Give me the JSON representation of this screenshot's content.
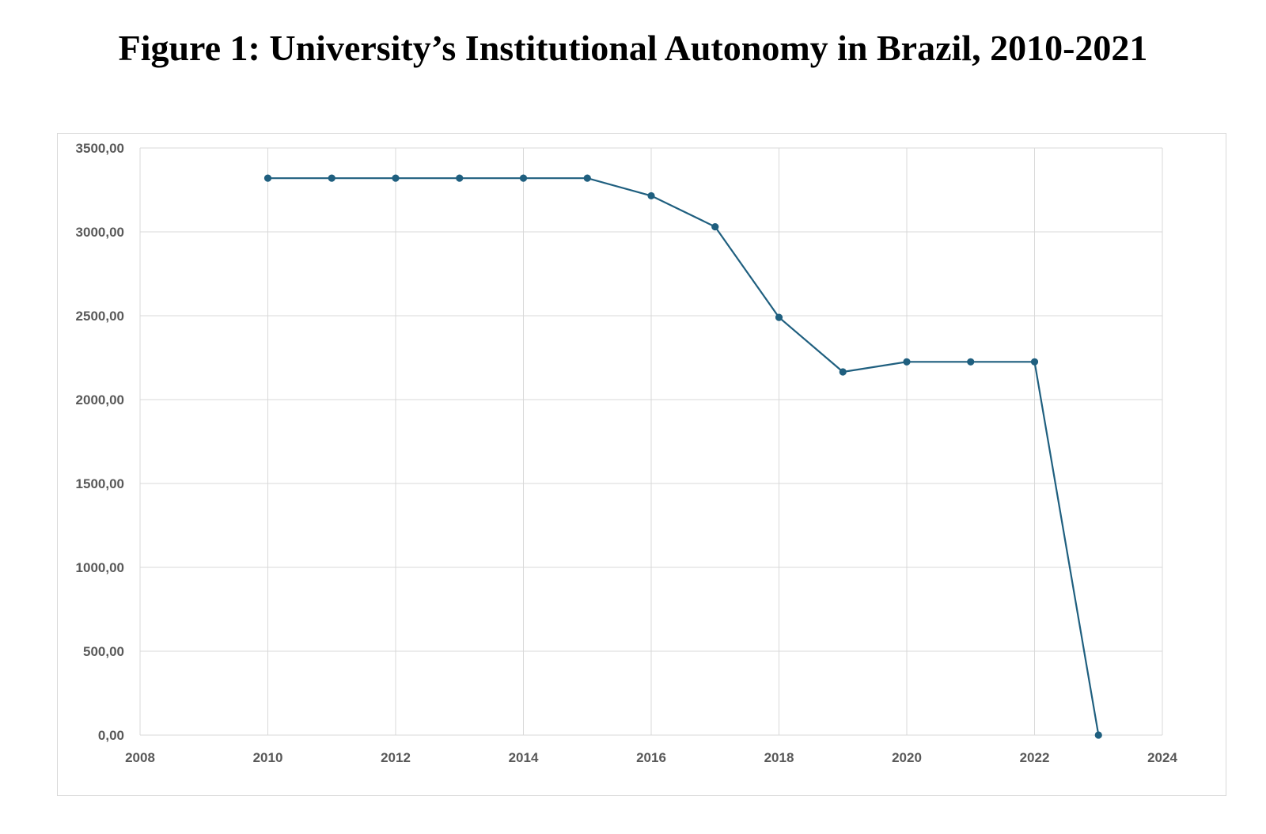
{
  "figure": {
    "title": "Figure 1: University’s Institutional Autonomy in Brazil, 2010-2021"
  },
  "colors": {
    "series_line": "#1f5f7f",
    "series_marker": "#1f5f7f",
    "grid": "#d9d9d9",
    "tick_text": "#595959"
  },
  "chart_data": {
    "type": "line",
    "title": "Figure 1: University’s Institutional Autonomy in Brazil, 2010-2021",
    "xlabel": "",
    "ylabel": "",
    "xlim": [
      2008,
      2024
    ],
    "ylim": [
      0,
      3500
    ],
    "x_ticks": [
      2008,
      2010,
      2012,
      2014,
      2016,
      2018,
      2020,
      2022,
      2024
    ],
    "x_tick_labels": [
      "2008",
      "2010",
      "2012",
      "2014",
      "2016",
      "2018",
      "2020",
      "2022",
      "2024"
    ],
    "y_ticks": [
      0,
      500,
      1000,
      1500,
      2000,
      2500,
      3000,
      3500
    ],
    "y_tick_labels": [
      "0,00",
      "500,00",
      "1000,00",
      "1500,00",
      "2000,00",
      "2500,00",
      "3000,00",
      "3500,00"
    ],
    "grid": true,
    "legend": "none",
    "series": [
      {
        "x": [
          2010,
          2011,
          2012,
          2013,
          2014,
          2015,
          2016,
          2017,
          2018,
          2019,
          2020,
          2021,
          2022,
          2023
        ],
        "y": [
          3320,
          3320,
          3320,
          3320,
          3320,
          3320,
          3215,
          3030,
          2490,
          2165,
          2225,
          2225,
          2225,
          0
        ]
      }
    ]
  }
}
